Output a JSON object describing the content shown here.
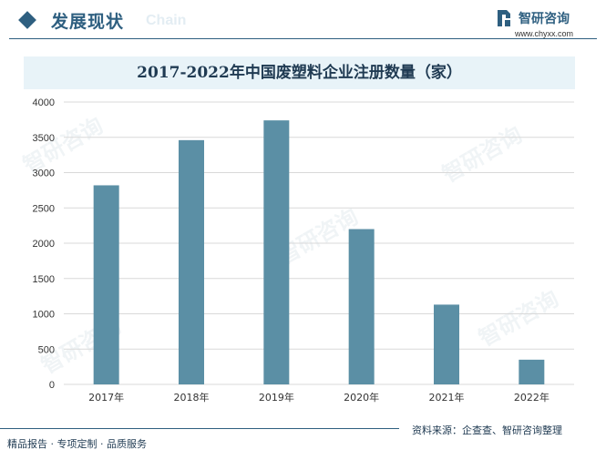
{
  "header": {
    "title": "发展现状",
    "watermark": "Chain"
  },
  "brand": {
    "name": "智研咨询",
    "url": "www.chyxx.com"
  },
  "chart_data": {
    "type": "bar",
    "title": "2017-2022年中国废塑料企业注册数量（家）",
    "categories": [
      "2017年",
      "2018年",
      "2019年",
      "2020年",
      "2021年",
      "2022年"
    ],
    "values": [
      2820,
      3460,
      3740,
      2200,
      1130,
      350
    ],
    "ylim": [
      0,
      4000
    ],
    "yticks": [
      0,
      500,
      1000,
      1500,
      2000,
      2500,
      3000,
      3500,
      4000
    ],
    "xlabel": "",
    "ylabel": "",
    "grid": true,
    "bar_color": "#5b8fa5",
    "grid_color": "#d9d9d9"
  },
  "footer": {
    "left": "精品报告 · 专项定制 · 品质服务",
    "source": "资料来源：企查查、智研咨询整理"
  },
  "colors": {
    "accent": "#2e5f80",
    "title_bg": "#e8f3f8"
  }
}
